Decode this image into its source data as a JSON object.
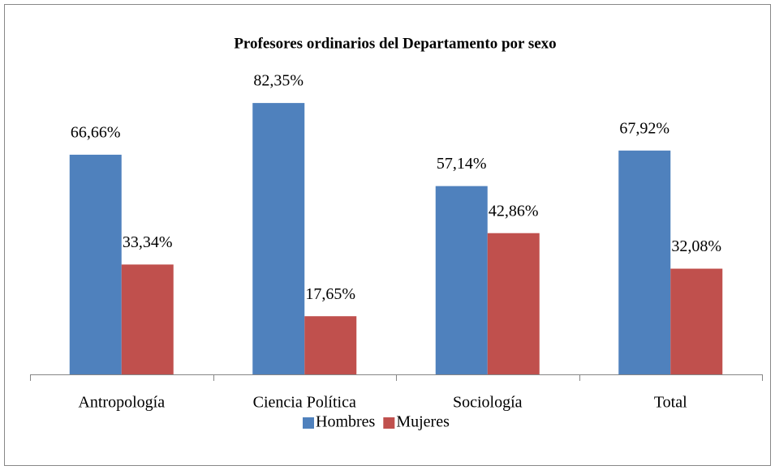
{
  "chart_data": {
    "type": "bar",
    "title": "Profesores ordinarios del Departamento por sexo",
    "categories": [
      "Antropología",
      "Ciencia Política",
      "Sociología",
      "Total"
    ],
    "series": [
      {
        "name": "Hombres",
        "color": "#4f81bd",
        "values": [
          66.66,
          82.35,
          57.14,
          67.92
        ],
        "value_labels": [
          "66,66%",
          "82,35%",
          "57,14%",
          "67,92%"
        ]
      },
      {
        "name": "Mujeres",
        "color": "#c0504d",
        "values": [
          33.34,
          17.65,
          42.86,
          32.08
        ],
        "value_labels": [
          "33,34%",
          "17,65%",
          "42,86%",
          "32,08%"
        ]
      }
    ],
    "ylim": [
      0,
      90
    ],
    "legend": "bottom"
  }
}
